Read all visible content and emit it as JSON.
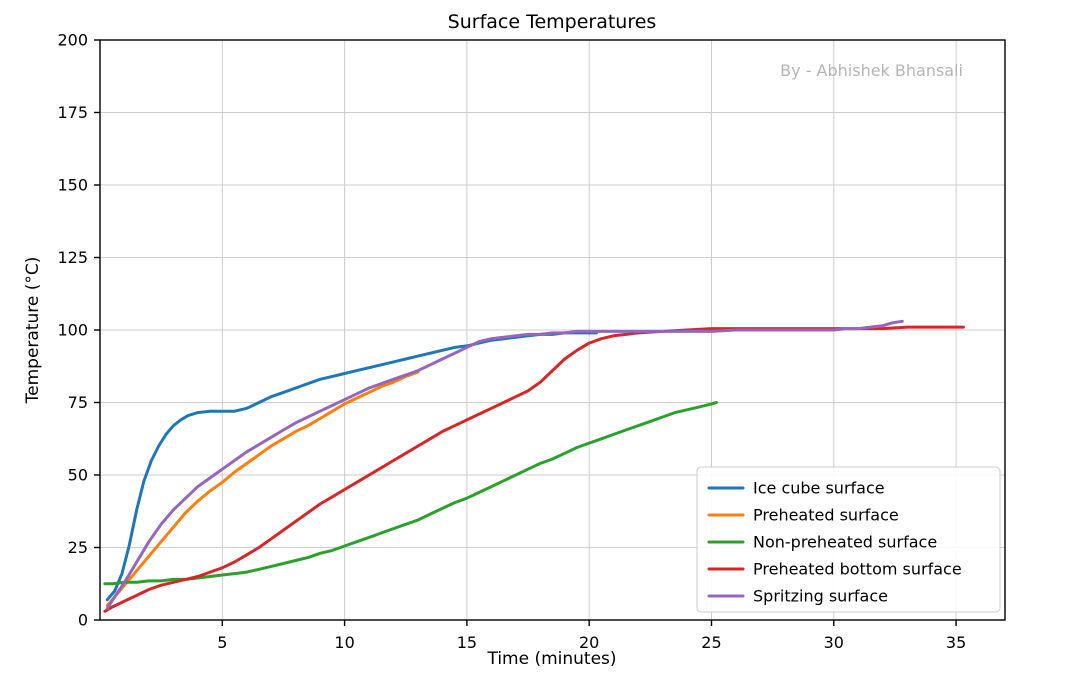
{
  "chart_data": {
    "type": "line",
    "title": "Surface Temperatures",
    "xlabel": "Time (minutes)",
    "ylabel": "Temperature (°C)",
    "watermark": "By - Abhishek Bhansali",
    "xlim": [
      0,
      37
    ],
    "ylim": [
      0,
      200
    ],
    "xticks": [
      5,
      10,
      15,
      20,
      25,
      30,
      35
    ],
    "yticks": [
      0,
      25,
      50,
      75,
      100,
      125,
      150,
      175,
      200
    ],
    "grid": true,
    "legend_position": "lower right",
    "colors": {
      "grid": "#cccccc",
      "spine": "#000000",
      "legend_frame": "#cccccc",
      "watermark": "#b5b5b5"
    },
    "series": [
      {
        "name": "Ice cube surface",
        "color": "#1f77b4",
        "points": [
          [
            0.3,
            7
          ],
          [
            0.6,
            10
          ],
          [
            0.9,
            16
          ],
          [
            1.2,
            26
          ],
          [
            1.5,
            38
          ],
          [
            1.8,
            48
          ],
          [
            2.1,
            55
          ],
          [
            2.4,
            60
          ],
          [
            2.7,
            64
          ],
          [
            3,
            67
          ],
          [
            3.3,
            69
          ],
          [
            3.6,
            70.5
          ],
          [
            4,
            71.5
          ],
          [
            4.5,
            72
          ],
          [
            5,
            72
          ],
          [
            5.5,
            72
          ],
          [
            6,
            73
          ],
          [
            6.5,
            75
          ],
          [
            7,
            77
          ],
          [
            7.5,
            78.5
          ],
          [
            8,
            80
          ],
          [
            8.5,
            81.5
          ],
          [
            9,
            83
          ],
          [
            9.5,
            84
          ],
          [
            10,
            85
          ],
          [
            10.5,
            86
          ],
          [
            11,
            87
          ],
          [
            11.5,
            88
          ],
          [
            12,
            89
          ],
          [
            12.5,
            90
          ],
          [
            13,
            91
          ],
          [
            13.5,
            92
          ],
          [
            14,
            93
          ],
          [
            14.5,
            94
          ],
          [
            15,
            94.5
          ],
          [
            15.5,
            95.5
          ],
          [
            16,
            96.5
          ],
          [
            16.5,
            97
          ],
          [
            17,
            97.5
          ],
          [
            17.5,
            98
          ],
          [
            18,
            98.5
          ],
          [
            18.5,
            98.5
          ],
          [
            19,
            99
          ],
          [
            19.5,
            99
          ],
          [
            20,
            99
          ],
          [
            20.3,
            99
          ]
        ]
      },
      {
        "name": "Preheated surface",
        "color": "#ff7f0e",
        "points": [
          [
            0.3,
            5
          ],
          [
            0.6,
            8
          ],
          [
            1,
            12
          ],
          [
            1.5,
            17
          ],
          [
            2,
            22
          ],
          [
            2.5,
            27
          ],
          [
            3,
            32
          ],
          [
            3.5,
            37
          ],
          [
            4,
            41
          ],
          [
            4.5,
            44.5
          ],
          [
            5,
            47.5
          ],
          [
            5.5,
            51
          ],
          [
            6,
            54
          ],
          [
            6.5,
            57
          ],
          [
            7,
            60
          ],
          [
            7.5,
            62.5
          ],
          [
            8,
            65
          ],
          [
            8.5,
            67
          ],
          [
            9,
            69.5
          ],
          [
            9.5,
            72
          ],
          [
            10,
            74.5
          ],
          [
            10.5,
            76.5
          ],
          [
            11,
            78.5
          ],
          [
            11.5,
            80.5
          ],
          [
            12,
            82
          ],
          [
            12.5,
            84
          ],
          [
            13,
            85.5
          ]
        ]
      },
      {
        "name": "Non-preheated surface",
        "color": "#2ca02c",
        "points": [
          [
            0.2,
            12.5
          ],
          [
            0.5,
            12.5
          ],
          [
            1,
            13
          ],
          [
            1.5,
            13
          ],
          [
            2,
            13.5
          ],
          [
            2.5,
            13.5
          ],
          [
            3,
            14
          ],
          [
            3.5,
            14
          ],
          [
            4,
            14.5
          ],
          [
            4.5,
            15
          ],
          [
            5,
            15.5
          ],
          [
            5.5,
            16
          ],
          [
            6,
            16.5
          ],
          [
            6.5,
            17.5
          ],
          [
            7,
            18.5
          ],
          [
            7.5,
            19.5
          ],
          [
            8,
            20.5
          ],
          [
            8.5,
            21.5
          ],
          [
            9,
            23
          ],
          [
            9.5,
            24
          ],
          [
            10,
            25.5
          ],
          [
            10.5,
            27
          ],
          [
            11,
            28.5
          ],
          [
            11.5,
            30
          ],
          [
            12,
            31.5
          ],
          [
            12.5,
            33
          ],
          [
            13,
            34.5
          ],
          [
            13.5,
            36.5
          ],
          [
            14,
            38.5
          ],
          [
            14.5,
            40.5
          ],
          [
            15,
            42
          ],
          [
            15.5,
            44
          ],
          [
            16,
            46
          ],
          [
            16.5,
            48
          ],
          [
            17,
            50
          ],
          [
            17.5,
            52
          ],
          [
            18,
            54
          ],
          [
            18.5,
            55.5
          ],
          [
            19,
            57.5
          ],
          [
            19.5,
            59.5
          ],
          [
            20,
            61
          ],
          [
            20.5,
            62.5
          ],
          [
            21,
            64
          ],
          [
            21.5,
            65.5
          ],
          [
            22,
            67
          ],
          [
            22.5,
            68.5
          ],
          [
            23,
            70
          ],
          [
            23.5,
            71.5
          ],
          [
            24,
            72.5
          ],
          [
            24.5,
            73.5
          ],
          [
            25,
            74.5
          ],
          [
            25.2,
            75
          ]
        ]
      },
      {
        "name": "Preheated bottom surface",
        "color": "#d62728",
        "points": [
          [
            0.2,
            3
          ],
          [
            0.5,
            4.5
          ],
          [
            1,
            6.5
          ],
          [
            1.5,
            8.5
          ],
          [
            2,
            10.5
          ],
          [
            2.5,
            12
          ],
          [
            3,
            13
          ],
          [
            3.5,
            14
          ],
          [
            4,
            15
          ],
          [
            4.5,
            16.5
          ],
          [
            5,
            18
          ],
          [
            5.5,
            20
          ],
          [
            6,
            22.5
          ],
          [
            6.5,
            25
          ],
          [
            7,
            28
          ],
          [
            7.5,
            31
          ],
          [
            8,
            34
          ],
          [
            8.5,
            37
          ],
          [
            9,
            40
          ],
          [
            9.5,
            42.5
          ],
          [
            10,
            45
          ],
          [
            10.5,
            47.5
          ],
          [
            11,
            50
          ],
          [
            11.5,
            52.5
          ],
          [
            12,
            55
          ],
          [
            12.5,
            57.5
          ],
          [
            13,
            60
          ],
          [
            13.5,
            62.5
          ],
          [
            14,
            65
          ],
          [
            14.5,
            67
          ],
          [
            15,
            69
          ],
          [
            15.5,
            71
          ],
          [
            16,
            73
          ],
          [
            16.5,
            75
          ],
          [
            17,
            77
          ],
          [
            17.5,
            79
          ],
          [
            18,
            82
          ],
          [
            18.5,
            86
          ],
          [
            19,
            90
          ],
          [
            19.5,
            93
          ],
          [
            20,
            95.5
          ],
          [
            20.5,
            97
          ],
          [
            21,
            98
          ],
          [
            21.5,
            98.5
          ],
          [
            22,
            99
          ],
          [
            23,
            99.5
          ],
          [
            24,
            100
          ],
          [
            25,
            100.5
          ],
          [
            26,
            100.5
          ],
          [
            27,
            100.5
          ],
          [
            28,
            100.5
          ],
          [
            29,
            100.5
          ],
          [
            30,
            100.5
          ],
          [
            31,
            100.5
          ],
          [
            32,
            100.5
          ],
          [
            33,
            101
          ],
          [
            34,
            101
          ],
          [
            35,
            101
          ],
          [
            35.3,
            101
          ]
        ]
      },
      {
        "name": "Spritzing surface",
        "color": "#9467bd",
        "points": [
          [
            0.3,
            4
          ],
          [
            0.6,
            8
          ],
          [
            1,
            13
          ],
          [
            1.5,
            20
          ],
          [
            2,
            27
          ],
          [
            2.5,
            33
          ],
          [
            3,
            38
          ],
          [
            3.5,
            42
          ],
          [
            4,
            46
          ],
          [
            4.5,
            49
          ],
          [
            5,
            52
          ],
          [
            5.5,
            55
          ],
          [
            6,
            58
          ],
          [
            6.5,
            60.5
          ],
          [
            7,
            63
          ],
          [
            7.5,
            65.5
          ],
          [
            8,
            68
          ],
          [
            8.5,
            70
          ],
          [
            9,
            72
          ],
          [
            9.5,
            74
          ],
          [
            10,
            76
          ],
          [
            10.5,
            78
          ],
          [
            11,
            80
          ],
          [
            11.5,
            81.5
          ],
          [
            12,
            83
          ],
          [
            12.5,
            84.5
          ],
          [
            13,
            86
          ],
          [
            13.5,
            88
          ],
          [
            14,
            90
          ],
          [
            14.5,
            92
          ],
          [
            15,
            94
          ],
          [
            15.5,
            96
          ],
          [
            16,
            97
          ],
          [
            16.5,
            97.5
          ],
          [
            17,
            98
          ],
          [
            17.5,
            98.5
          ],
          [
            18,
            98.5
          ],
          [
            18.5,
            99
          ],
          [
            19,
            99
          ],
          [
            19.5,
            99.5
          ],
          [
            20,
            99.5
          ],
          [
            21,
            99.5
          ],
          [
            22,
            99.5
          ],
          [
            23,
            99.5
          ],
          [
            24,
            99.5
          ],
          [
            25,
            99.5
          ],
          [
            26,
            100
          ],
          [
            27,
            100
          ],
          [
            28,
            100
          ],
          [
            29,
            100
          ],
          [
            30,
            100
          ],
          [
            30.5,
            100.5
          ],
          [
            31,
            100.5
          ],
          [
            31.5,
            101
          ],
          [
            32,
            101.5
          ],
          [
            32.4,
            102.5
          ],
          [
            32.8,
            103
          ]
        ]
      }
    ]
  }
}
